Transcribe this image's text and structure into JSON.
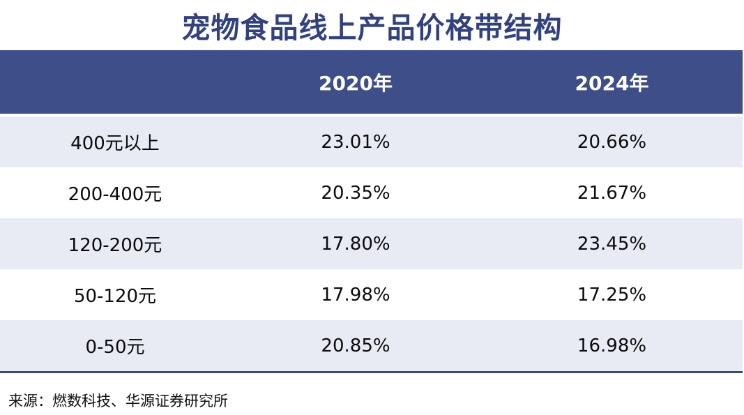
{
  "title": "宠物食品线上产品价格带结构",
  "table": {
    "columns": [
      "",
      "2020年",
      "2024年"
    ],
    "rows": [
      {
        "label": "400元以上",
        "y2020": "23.01%",
        "y2024": "20.66%"
      },
      {
        "label": "200-400元",
        "y2020": "20.35%",
        "y2024": "21.67%"
      },
      {
        "label": "120-200元",
        "y2020": "17.80%",
        "y2024": "23.45%"
      },
      {
        "label": "50-120元",
        "y2020": "17.98%",
        "y2024": "17.25%"
      },
      {
        "label": "0-50元",
        "y2020": "20.85%",
        "y2024": "16.98%"
      }
    ]
  },
  "source": "来源：燃数科技、华源证券研究所",
  "colors": {
    "title_text": "#32417F",
    "header_bg": "#3D4E88",
    "header_text": "#FFFFFF",
    "row_alt_bg": "#E8EBF4",
    "row_bg": "#FFFFFF",
    "bottom_rule": "#3A477F",
    "body_text": "#0B0B0B"
  },
  "chart_data": {
    "type": "table",
    "title": "宠物食品线上产品价格带结构",
    "categories": [
      "400元以上",
      "200-400元",
      "120-200元",
      "50-120元",
      "0-50元"
    ],
    "series": [
      {
        "name": "2020年",
        "values": [
          23.01,
          20.35,
          17.8,
          17.98,
          20.85
        ]
      },
      {
        "name": "2024年",
        "values": [
          20.66,
          21.67,
          23.45,
          17.25,
          16.98
        ]
      }
    ],
    "unit": "%",
    "source": "来源：燃数科技、华源证券研究所"
  }
}
